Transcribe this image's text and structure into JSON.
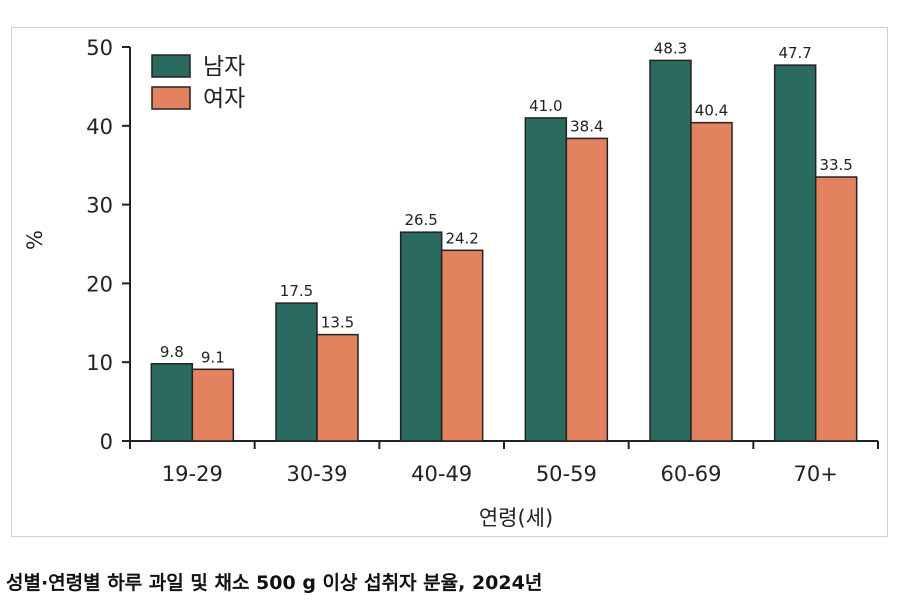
{
  "caption": "성별·연령별 하루 과일 및 채소 500 g 이상 섭취자 분율, 2024년",
  "chart_data": {
    "type": "bar",
    "categories": [
      "19-29",
      "30-39",
      "40-49",
      "50-59",
      "60-69",
      "70+"
    ],
    "series": [
      {
        "name": "남자",
        "color": "#2b6b5f",
        "values": [
          9.8,
          17.5,
          26.5,
          41.0,
          48.3,
          47.7
        ]
      },
      {
        "name": "여자",
        "color": "#e2825f",
        "values": [
          9.1,
          13.5,
          24.2,
          38.4,
          40.4,
          33.5
        ]
      }
    ],
    "value_labels": [
      [
        "9.8",
        "17.5",
        "26.5",
        "41.0",
        "48.3",
        "47.7"
      ],
      [
        "9.1",
        "13.5",
        "24.2",
        "38.4",
        "40.4",
        "33.5"
      ]
    ],
    "xlabel": "연령(세)",
    "ylabel": "%",
    "ylim": [
      0,
      50
    ],
    "yticks": [
      0,
      10,
      20,
      30,
      40,
      50
    ],
    "grid": false,
    "legend_position": "top-left"
  }
}
